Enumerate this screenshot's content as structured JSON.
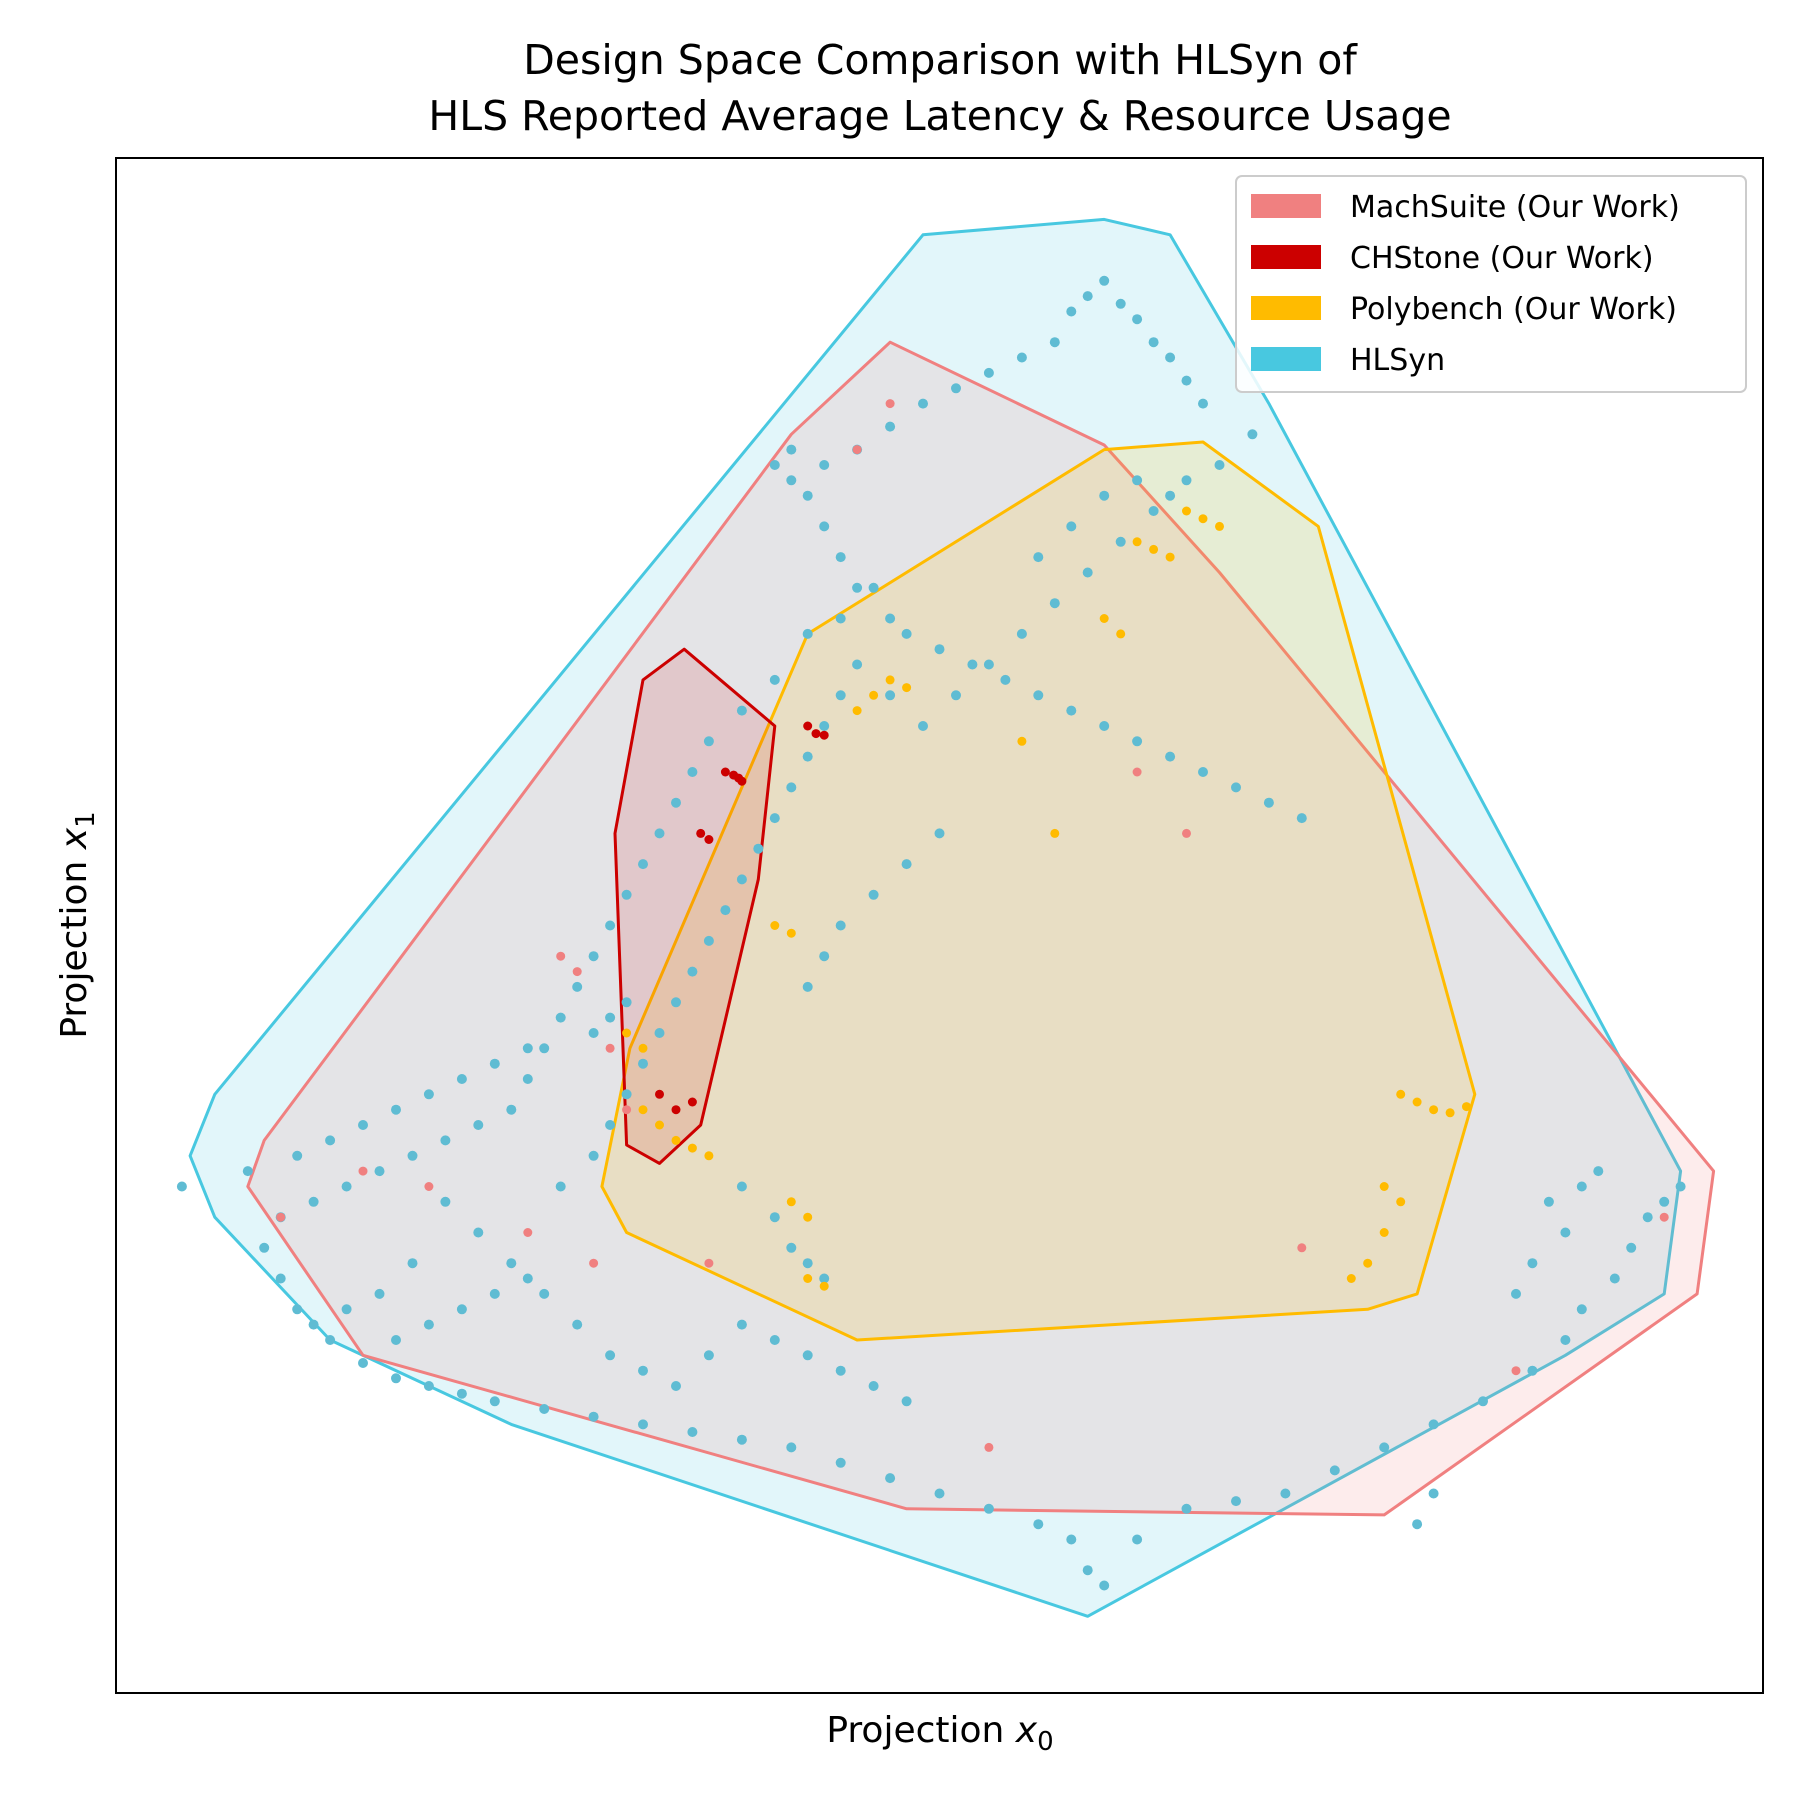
{
  "chart_data": {
    "type": "scatter",
    "title_lines": [
      "Design Space Comparison with HLSyn of",
      "HLS Reported Average Latency & Resource Usage"
    ],
    "xlabel_prefix": "Projection ",
    "xlabel_var": "x",
    "xlabel_sub": "0",
    "ylabel_prefix": "Projection ",
    "ylabel_var": "x",
    "ylabel_sub": "1",
    "xticks": [],
    "yticks": [],
    "xlim": [
      0,
      1
    ],
    "ylim": [
      0,
      1
    ],
    "grid": false,
    "legend_position": "top-right",
    "series": [
      {
        "name": "MachSuite (Our Work)",
        "color": "#f08080",
        "hull": [
          [
            0.47,
            0.88
          ],
          [
            0.6,
            0.813
          ],
          [
            0.67,
            0.73
          ],
          [
            0.97,
            0.34
          ],
          [
            0.96,
            0.26
          ],
          [
            0.77,
            0.116
          ],
          [
            0.48,
            0.12
          ],
          [
            0.15,
            0.22
          ],
          [
            0.08,
            0.33
          ],
          [
            0.09,
            0.36
          ],
          [
            0.41,
            0.82
          ]
        ],
        "points": [
          [
            0.47,
            0.84
          ],
          [
            0.45,
            0.81
          ],
          [
            0.28,
            0.47
          ],
          [
            0.3,
            0.42
          ],
          [
            0.31,
            0.38
          ],
          [
            0.62,
            0.6
          ],
          [
            0.65,
            0.56
          ],
          [
            0.72,
            0.29
          ],
          [
            0.85,
            0.21
          ],
          [
            0.94,
            0.31
          ],
          [
            0.1,
            0.31
          ],
          [
            0.15,
            0.34
          ],
          [
            0.29,
            0.28
          ],
          [
            0.53,
            0.16
          ],
          [
            0.36,
            0.28
          ],
          [
            0.27,
            0.48
          ],
          [
            0.19,
            0.33
          ],
          [
            0.25,
            0.3
          ]
        ]
      },
      {
        "name": "CHStone (Our Work)",
        "color": "#cc0000",
        "hull": [
          [
            0.32,
            0.66
          ],
          [
            0.345,
            0.68
          ],
          [
            0.4,
            0.63
          ],
          [
            0.39,
            0.53
          ],
          [
            0.355,
            0.37
          ],
          [
            0.33,
            0.345
          ],
          [
            0.31,
            0.357
          ],
          [
            0.303,
            0.56
          ]
        ],
        "points": [
          [
            0.42,
            0.63
          ],
          [
            0.425,
            0.625
          ],
          [
            0.43,
            0.624
          ],
          [
            0.37,
            0.6
          ],
          [
            0.375,
            0.598
          ],
          [
            0.378,
            0.596
          ],
          [
            0.38,
            0.594
          ],
          [
            0.355,
            0.56
          ],
          [
            0.36,
            0.556
          ],
          [
            0.33,
            0.39
          ],
          [
            0.34,
            0.38
          ],
          [
            0.35,
            0.385
          ]
        ]
      },
      {
        "name": "Polybench (Our Work)",
        "color": "#ffbb00",
        "hull": [
          [
            0.6,
            0.81
          ],
          [
            0.66,
            0.815
          ],
          [
            0.73,
            0.76
          ],
          [
            0.825,
            0.39
          ],
          [
            0.79,
            0.26
          ],
          [
            0.76,
            0.25
          ],
          [
            0.45,
            0.23
          ],
          [
            0.31,
            0.3
          ],
          [
            0.295,
            0.33
          ],
          [
            0.312,
            0.42
          ],
          [
            0.42,
            0.69
          ]
        ],
        "points": [
          [
            0.65,
            0.77
          ],
          [
            0.66,
            0.765
          ],
          [
            0.67,
            0.76
          ],
          [
            0.62,
            0.75
          ],
          [
            0.63,
            0.745
          ],
          [
            0.64,
            0.74
          ],
          [
            0.6,
            0.7
          ],
          [
            0.61,
            0.69
          ],
          [
            0.55,
            0.62
          ],
          [
            0.57,
            0.56
          ],
          [
            0.45,
            0.64
          ],
          [
            0.46,
            0.65
          ],
          [
            0.47,
            0.66
          ],
          [
            0.48,
            0.655
          ],
          [
            0.4,
            0.5
          ],
          [
            0.41,
            0.495
          ],
          [
            0.31,
            0.43
          ],
          [
            0.32,
            0.42
          ],
          [
            0.32,
            0.38
          ],
          [
            0.33,
            0.37
          ],
          [
            0.34,
            0.36
          ],
          [
            0.35,
            0.355
          ],
          [
            0.36,
            0.35
          ],
          [
            0.78,
            0.39
          ],
          [
            0.79,
            0.385
          ],
          [
            0.8,
            0.38
          ],
          [
            0.81,
            0.378
          ],
          [
            0.82,
            0.382
          ],
          [
            0.77,
            0.33
          ],
          [
            0.78,
            0.32
          ],
          [
            0.77,
            0.3
          ],
          [
            0.76,
            0.28
          ],
          [
            0.75,
            0.27
          ],
          [
            0.42,
            0.27
          ],
          [
            0.43,
            0.265
          ],
          [
            0.41,
            0.32
          ],
          [
            0.42,
            0.31
          ]
        ]
      },
      {
        "name": "HLSyn",
        "color": "#48c8e0",
        "hull": [
          [
            0.6,
            0.96
          ],
          [
            0.64,
            0.95
          ],
          [
            0.7,
            0.84
          ],
          [
            0.95,
            0.34
          ],
          [
            0.94,
            0.26
          ],
          [
            0.88,
            0.22
          ],
          [
            0.59,
            0.05
          ],
          [
            0.24,
            0.175
          ],
          [
            0.13,
            0.23
          ],
          [
            0.06,
            0.31
          ],
          [
            0.045,
            0.35
          ],
          [
            0.06,
            0.39
          ],
          [
            0.49,
            0.95
          ]
        ],
        "points": [
          [
            0.58,
            0.9
          ],
          [
            0.59,
            0.91
          ],
          [
            0.6,
            0.92
          ],
          [
            0.61,
            0.905
          ],
          [
            0.62,
            0.895
          ],
          [
            0.63,
            0.88
          ],
          [
            0.64,
            0.87
          ],
          [
            0.65,
            0.855
          ],
          [
            0.66,
            0.84
          ],
          [
            0.57,
            0.88
          ],
          [
            0.55,
            0.87
          ],
          [
            0.53,
            0.86
          ],
          [
            0.51,
            0.85
          ],
          [
            0.49,
            0.84
          ],
          [
            0.47,
            0.825
          ],
          [
            0.45,
            0.81
          ],
          [
            0.43,
            0.8
          ],
          [
            0.41,
            0.81
          ],
          [
            0.4,
            0.8
          ],
          [
            0.41,
            0.79
          ],
          [
            0.42,
            0.78
          ],
          [
            0.43,
            0.76
          ],
          [
            0.44,
            0.74
          ],
          [
            0.45,
            0.72
          ],
          [
            0.47,
            0.7
          ],
          [
            0.48,
            0.69
          ],
          [
            0.5,
            0.68
          ],
          [
            0.52,
            0.67
          ],
          [
            0.54,
            0.66
          ],
          [
            0.56,
            0.65
          ],
          [
            0.58,
            0.64
          ],
          [
            0.6,
            0.63
          ],
          [
            0.62,
            0.62
          ],
          [
            0.64,
            0.61
          ],
          [
            0.66,
            0.6
          ],
          [
            0.68,
            0.59
          ],
          [
            0.7,
            0.58
          ],
          [
            0.72,
            0.57
          ],
          [
            0.56,
            0.74
          ],
          [
            0.58,
            0.76
          ],
          [
            0.6,
            0.78
          ],
          [
            0.62,
            0.79
          ],
          [
            0.64,
            0.78
          ],
          [
            0.46,
            0.72
          ],
          [
            0.44,
            0.7
          ],
          [
            0.42,
            0.69
          ],
          [
            0.4,
            0.66
          ],
          [
            0.38,
            0.64
          ],
          [
            0.36,
            0.62
          ],
          [
            0.35,
            0.6
          ],
          [
            0.34,
            0.58
          ],
          [
            0.33,
            0.56
          ],
          [
            0.32,
            0.54
          ],
          [
            0.31,
            0.52
          ],
          [
            0.3,
            0.5
          ],
          [
            0.29,
            0.48
          ],
          [
            0.28,
            0.46
          ],
          [
            0.27,
            0.44
          ],
          [
            0.26,
            0.42
          ],
          [
            0.25,
            0.4
          ],
          [
            0.24,
            0.38
          ],
          [
            0.22,
            0.37
          ],
          [
            0.2,
            0.36
          ],
          [
            0.18,
            0.35
          ],
          [
            0.16,
            0.34
          ],
          [
            0.14,
            0.33
          ],
          [
            0.12,
            0.32
          ],
          [
            0.1,
            0.31
          ],
          [
            0.09,
            0.29
          ],
          [
            0.1,
            0.27
          ],
          [
            0.11,
            0.25
          ],
          [
            0.13,
            0.23
          ],
          [
            0.15,
            0.215
          ],
          [
            0.17,
            0.205
          ],
          [
            0.19,
            0.2
          ],
          [
            0.21,
            0.195
          ],
          [
            0.23,
            0.19
          ],
          [
            0.26,
            0.185
          ],
          [
            0.29,
            0.18
          ],
          [
            0.32,
            0.175
          ],
          [
            0.35,
            0.17
          ],
          [
            0.38,
            0.165
          ],
          [
            0.41,
            0.16
          ],
          [
            0.44,
            0.15
          ],
          [
            0.47,
            0.14
          ],
          [
            0.5,
            0.13
          ],
          [
            0.53,
            0.12
          ],
          [
            0.56,
            0.11
          ],
          [
            0.58,
            0.1
          ],
          [
            0.59,
            0.08
          ],
          [
            0.6,
            0.07
          ],
          [
            0.62,
            0.1
          ],
          [
            0.65,
            0.12
          ],
          [
            0.68,
            0.125
          ],
          [
            0.71,
            0.13
          ],
          [
            0.74,
            0.145
          ],
          [
            0.77,
            0.16
          ],
          [
            0.8,
            0.175
          ],
          [
            0.83,
            0.19
          ],
          [
            0.86,
            0.21
          ],
          [
            0.88,
            0.23
          ],
          [
            0.89,
            0.25
          ],
          [
            0.91,
            0.27
          ],
          [
            0.92,
            0.29
          ],
          [
            0.93,
            0.31
          ],
          [
            0.94,
            0.32
          ],
          [
            0.95,
            0.33
          ],
          [
            0.88,
            0.3
          ],
          [
            0.86,
            0.28
          ],
          [
            0.85,
            0.26
          ],
          [
            0.9,
            0.34
          ],
          [
            0.89,
            0.33
          ],
          [
            0.87,
            0.32
          ],
          [
            0.8,
            0.13
          ],
          [
            0.79,
            0.11
          ],
          [
            0.2,
            0.32
          ],
          [
            0.22,
            0.3
          ],
          [
            0.24,
            0.28
          ],
          [
            0.26,
            0.26
          ],
          [
            0.28,
            0.24
          ],
          [
            0.3,
            0.22
          ],
          [
            0.32,
            0.21
          ],
          [
            0.34,
            0.2
          ],
          [
            0.36,
            0.22
          ],
          [
            0.38,
            0.24
          ],
          [
            0.4,
            0.23
          ],
          [
            0.42,
            0.22
          ],
          [
            0.44,
            0.21
          ],
          [
            0.46,
            0.2
          ],
          [
            0.48,
            0.19
          ],
          [
            0.18,
            0.28
          ],
          [
            0.16,
            0.26
          ],
          [
            0.14,
            0.25
          ],
          [
            0.12,
            0.24
          ],
          [
            0.17,
            0.23
          ],
          [
            0.19,
            0.24
          ],
          [
            0.21,
            0.25
          ],
          [
            0.23,
            0.26
          ],
          [
            0.25,
            0.27
          ],
          [
            0.27,
            0.33
          ],
          [
            0.29,
            0.35
          ],
          [
            0.3,
            0.37
          ],
          [
            0.31,
            0.39
          ],
          [
            0.32,
            0.41
          ],
          [
            0.33,
            0.43
          ],
          [
            0.34,
            0.45
          ],
          [
            0.35,
            0.47
          ],
          [
            0.36,
            0.49
          ],
          [
            0.37,
            0.51
          ],
          [
            0.38,
            0.53
          ],
          [
            0.39,
            0.55
          ],
          [
            0.4,
            0.57
          ],
          [
            0.41,
            0.59
          ],
          [
            0.42,
            0.61
          ],
          [
            0.43,
            0.63
          ],
          [
            0.44,
            0.65
          ],
          [
            0.45,
            0.67
          ],
          [
            0.47,
            0.65
          ],
          [
            0.49,
            0.63
          ],
          [
            0.51,
            0.65
          ],
          [
            0.53,
            0.67
          ],
          [
            0.55,
            0.69
          ],
          [
            0.57,
            0.71
          ],
          [
            0.59,
            0.73
          ],
          [
            0.61,
            0.75
          ],
          [
            0.63,
            0.77
          ],
          [
            0.65,
            0.79
          ],
          [
            0.67,
            0.8
          ],
          [
            0.69,
            0.82
          ],
          [
            0.5,
            0.56
          ],
          [
            0.48,
            0.54
          ],
          [
            0.46,
            0.52
          ],
          [
            0.44,
            0.5
          ],
          [
            0.43,
            0.48
          ],
          [
            0.42,
            0.46
          ],
          [
            0.04,
            0.33
          ],
          [
            0.08,
            0.34
          ],
          [
            0.11,
            0.35
          ],
          [
            0.13,
            0.36
          ],
          [
            0.15,
            0.37
          ],
          [
            0.17,
            0.38
          ],
          [
            0.19,
            0.39
          ],
          [
            0.21,
            0.4
          ],
          [
            0.23,
            0.41
          ],
          [
            0.25,
            0.42
          ],
          [
            0.29,
            0.43
          ],
          [
            0.3,
            0.44
          ],
          [
            0.31,
            0.45
          ],
          [
            0.38,
            0.33
          ],
          [
            0.4,
            0.31
          ],
          [
            0.41,
            0.29
          ],
          [
            0.42,
            0.28
          ],
          [
            0.43,
            0.27
          ]
        ]
      }
    ]
  }
}
